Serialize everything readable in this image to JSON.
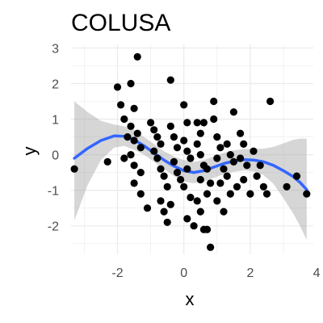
{
  "chart_data": {
    "type": "scatter",
    "title": "COLUSA",
    "xlabel": "x",
    "ylabel": "y",
    "xlim": [
      -3.4,
      3.9
    ],
    "ylim": [
      -2.8,
      3.1
    ],
    "x_ticks": [
      -2,
      0,
      2,
      4
    ],
    "x_tick_labels": [
      "-2",
      "0",
      "2",
      "4"
    ],
    "y_ticks": [
      -2,
      -1,
      0,
      1,
      2,
      3
    ],
    "y_tick_labels": [
      "-2",
      "-1",
      "0",
      "1",
      "2",
      "3"
    ],
    "grid": true,
    "legend": "none",
    "colors": {
      "points": "#000000",
      "smooth_line": "#3366ff",
      "ribbon": "#999999",
      "grid": "#ebebeb"
    },
    "points": [
      [
        -3.3,
        -0.4
      ],
      [
        -2.3,
        -0.2
      ],
      [
        -2.0,
        1.9
      ],
      [
        -1.6,
        2.0
      ],
      [
        -1.4,
        2.75
      ],
      [
        -1.9,
        1.4
      ],
      [
        -1.5,
        1.3
      ],
      [
        -1.8,
        1.0
      ],
      [
        -1.6,
        0.8
      ],
      [
        -1.4,
        0.6
      ],
      [
        -1.7,
        0.5
      ],
      [
        -1.5,
        0.4
      ],
      [
        -1.3,
        0.2
      ],
      [
        -1.6,
        0.0
      ],
      [
        -1.8,
        -0.1
      ],
      [
        -1.5,
        -0.3
      ],
      [
        -1.3,
        -0.5
      ],
      [
        -1.5,
        -0.8
      ],
      [
        -1.3,
        -1.1
      ],
      [
        -1.1,
        -1.5
      ],
      [
        -1.0,
        0.9
      ],
      [
        -0.9,
        0.7
      ],
      [
        -0.8,
        0.5
      ],
      [
        -0.7,
        0.3
      ],
      [
        -0.9,
        0.1
      ],
      [
        -0.8,
        -0.1
      ],
      [
        -0.7,
        -0.4
      ],
      [
        -0.6,
        -0.6
      ],
      [
        -0.5,
        -0.9
      ],
      [
        -0.7,
        -1.3
      ],
      [
        -0.6,
        -1.6
      ],
      [
        -0.4,
        -1.4
      ],
      [
        -0.5,
        -1.9
      ],
      [
        -0.4,
        2.1
      ],
      [
        -0.4,
        0.8
      ],
      [
        -0.3,
        0.5
      ],
      [
        -0.2,
        0.2
      ],
      [
        -0.3,
        -0.2
      ],
      [
        -0.2,
        -0.5
      ],
      [
        -0.1,
        -0.7
      ],
      [
        0.0,
        1.4
      ],
      [
        0.1,
        0.9
      ],
      [
        0.0,
        0.4
      ],
      [
        0.1,
        0.1
      ],
      [
        0.2,
        -0.1
      ],
      [
        0.1,
        -0.4
      ],
      [
        0.0,
        -0.9
      ],
      [
        0.2,
        -1.2
      ],
      [
        0.1,
        -1.8
      ],
      [
        0.3,
        -2.0
      ],
      [
        0.4,
        0.9
      ],
      [
        0.5,
        0.6
      ],
      [
        0.4,
        0.3
      ],
      [
        0.5,
        0.0
      ],
      [
        0.6,
        -0.3
      ],
      [
        0.5,
        -0.7
      ],
      [
        0.4,
        -1.3
      ],
      [
        0.5,
        -1.6
      ],
      [
        0.6,
        -2.1
      ],
      [
        0.7,
        -2.1
      ],
      [
        0.6,
        0.9
      ],
      [
        0.7,
        -0.4
      ],
      [
        0.8,
        -0.8
      ],
      [
        0.7,
        -1.1
      ],
      [
        0.8,
        -2.6
      ],
      [
        0.9,
        1.5
      ],
      [
        0.9,
        1.0
      ],
      [
        1.0,
        0.5
      ],
      [
        1.1,
        0.2
      ],
      [
        1.0,
        -0.1
      ],
      [
        1.2,
        -0.4
      ],
      [
        1.1,
        -0.8
      ],
      [
        1.0,
        -1.3
      ],
      [
        1.2,
        -1.6
      ],
      [
        1.3,
        0.3
      ],
      [
        1.4,
        0.0
      ],
      [
        1.5,
        -0.2
      ],
      [
        1.3,
        -0.6
      ],
      [
        1.6,
        -0.9
      ],
      [
        1.4,
        -1.1
      ],
      [
        1.5,
        1.2
      ],
      [
        1.7,
        0.6
      ],
      [
        1.8,
        0.3
      ],
      [
        1.7,
        -0.1
      ],
      [
        1.9,
        -0.3
      ],
      [
        1.8,
        -0.7
      ],
      [
        2.0,
        -1.1
      ],
      [
        2.1,
        0.1
      ],
      [
        2.3,
        -0.3
      ],
      [
        2.2,
        -0.6
      ],
      [
        2.4,
        -0.9
      ],
      [
        2.5,
        -1.1
      ],
      [
        2.6,
        1.5
      ],
      [
        3.1,
        -0.9
      ],
      [
        3.4,
        -0.6
      ],
      [
        3.7,
        -1.1
      ]
    ],
    "smooth_line": [
      [
        -3.3,
        -0.1
      ],
      [
        -2.9,
        0.18
      ],
      [
        -2.5,
        0.4
      ],
      [
        -2.1,
        0.53
      ],
      [
        -1.8,
        0.52
      ],
      [
        -1.5,
        0.42
      ],
      [
        -1.2,
        0.25
      ],
      [
        -0.9,
        0.05
      ],
      [
        -0.6,
        -0.15
      ],
      [
        -0.3,
        -0.32
      ],
      [
        0.0,
        -0.45
      ],
      [
        0.3,
        -0.5
      ],
      [
        0.6,
        -0.45
      ],
      [
        0.9,
        -0.35
      ],
      [
        1.2,
        -0.25
      ],
      [
        1.5,
        -0.18
      ],
      [
        1.8,
        -0.14
      ],
      [
        2.1,
        -0.15
      ],
      [
        2.4,
        -0.2
      ],
      [
        2.7,
        -0.3
      ],
      [
        3.0,
        -0.45
      ],
      [
        3.3,
        -0.62
      ],
      [
        3.5,
        -0.78
      ],
      [
        3.7,
        -0.98
      ]
    ],
    "ribbon_upper": [
      [
        -3.3,
        1.5
      ],
      [
        -2.9,
        1.2
      ],
      [
        -2.5,
        0.95
      ],
      [
        -2.1,
        0.85
      ],
      [
        -1.8,
        0.8
      ],
      [
        -1.5,
        0.7
      ],
      [
        -1.2,
        0.5
      ],
      [
        -0.9,
        0.3
      ],
      [
        -0.6,
        0.1
      ],
      [
        -0.3,
        -0.05
      ],
      [
        0.0,
        -0.15
      ],
      [
        0.3,
        -0.2
      ],
      [
        0.6,
        -0.15
      ],
      [
        0.9,
        -0.05
      ],
      [
        1.2,
        0.05
      ],
      [
        1.5,
        0.12
      ],
      [
        1.8,
        0.16
      ],
      [
        2.1,
        0.17
      ],
      [
        2.4,
        0.17
      ],
      [
        2.7,
        0.22
      ],
      [
        3.0,
        0.32
      ],
      [
        3.3,
        0.42
      ],
      [
        3.5,
        0.45
      ],
      [
        3.7,
        0.45
      ]
    ],
    "ribbon_lower": [
      [
        -3.3,
        -1.85
      ],
      [
        -2.9,
        -0.85
      ],
      [
        -2.5,
        -0.15
      ],
      [
        -2.1,
        0.2
      ],
      [
        -1.8,
        0.25
      ],
      [
        -1.5,
        0.14
      ],
      [
        -1.2,
        0.0
      ],
      [
        -0.9,
        -0.2
      ],
      [
        -0.6,
        -0.4
      ],
      [
        -0.3,
        -0.6
      ],
      [
        0.0,
        -0.75
      ],
      [
        0.3,
        -0.8
      ],
      [
        0.6,
        -0.75
      ],
      [
        0.9,
        -0.65
      ],
      [
        1.2,
        -0.55
      ],
      [
        1.5,
        -0.48
      ],
      [
        1.8,
        -0.44
      ],
      [
        2.1,
        -0.47
      ],
      [
        2.4,
        -0.57
      ],
      [
        2.7,
        -0.82
      ],
      [
        3.0,
        -1.22
      ],
      [
        3.3,
        -1.66
      ],
      [
        3.5,
        -2.0
      ],
      [
        3.7,
        -2.4
      ]
    ]
  }
}
